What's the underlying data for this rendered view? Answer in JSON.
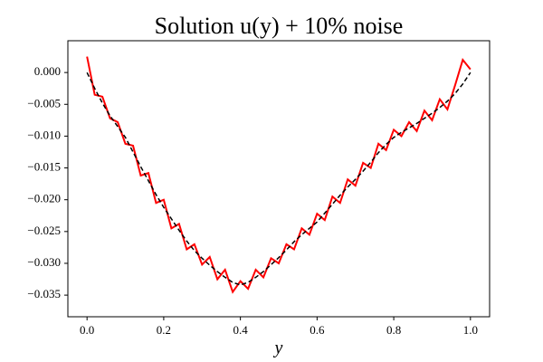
{
  "chart_data": {
    "type": "line",
    "title": "Solution u(y) + 10% noise",
    "xlabel": "y",
    "x": [
      0,
      0.02,
      0.04,
      0.06,
      0.08,
      0.1,
      0.12,
      0.14,
      0.16,
      0.18,
      0.2,
      0.22,
      0.24,
      0.26,
      0.28,
      0.3,
      0.32,
      0.34,
      0.36,
      0.38,
      0.4,
      0.42,
      0.44,
      0.46,
      0.48,
      0.5,
      0.52,
      0.54,
      0.56,
      0.58,
      0.6,
      0.62,
      0.64,
      0.66,
      0.68,
      0.7,
      0.72,
      0.74,
      0.76,
      0.78,
      0.8,
      0.82,
      0.84,
      0.86,
      0.88,
      0.9,
      0.92,
      0.94,
      0.96,
      0.98,
      1.0
    ],
    "series": [
      {
        "color": "#ff0000",
        "dashed": false,
        "values": [
          0.0025,
          -0.0035,
          -0.0038,
          -0.0072,
          -0.0078,
          -0.0112,
          -0.0115,
          -0.0162,
          -0.0158,
          -0.0205,
          -0.02,
          -0.0245,
          -0.0238,
          -0.0278,
          -0.027,
          -0.0302,
          -0.029,
          -0.0325,
          -0.031,
          -0.0345,
          -0.0328,
          -0.034,
          -0.031,
          -0.0322,
          -0.0292,
          -0.03,
          -0.027,
          -0.0278,
          -0.0245,
          -0.0255,
          -0.0222,
          -0.0232,
          -0.0195,
          -0.0205,
          -0.0168,
          -0.0178,
          -0.0142,
          -0.015,
          -0.0112,
          -0.0122,
          -0.009,
          -0.01,
          -0.0078,
          -0.0092,
          -0.006,
          -0.0075,
          -0.0042,
          -0.0058,
          -0.002,
          0.002,
          0.0005
        ]
      },
      {
        "color": "#000000",
        "dashed": true,
        "values": [
          0,
          -0.0025,
          -0.0048,
          -0.0068,
          -0.0085,
          -0.0102,
          -0.0125,
          -0.0148,
          -0.017,
          -0.0192,
          -0.0212,
          -0.023,
          -0.0248,
          -0.0265,
          -0.028,
          -0.0292,
          -0.0303,
          -0.0313,
          -0.0322,
          -0.033,
          -0.0334,
          -0.033,
          -0.0322,
          -0.0313,
          -0.0302,
          -0.0291,
          -0.0279,
          -0.0266,
          -0.0255,
          -0.0245,
          -0.0235,
          -0.0221,
          -0.0207,
          -0.0193,
          -0.018,
          -0.0168,
          -0.0155,
          -0.0141,
          -0.0126,
          -0.0113,
          -0.0102,
          -0.0094,
          -0.0087,
          -0.008,
          -0.0072,
          -0.0064,
          -0.0055,
          -0.0045,
          -0.0033,
          -0.0018,
          0
        ]
      }
    ],
    "xlim": [
      -0.05,
      1.05
    ],
    "ylim": [
      -0.0384,
      0.005
    ],
    "xticks": [
      {
        "value": 0,
        "label": "0.0"
      },
      {
        "value": 0.2,
        "label": "0.2"
      },
      {
        "value": 0.4,
        "label": "0.4"
      },
      {
        "value": 0.6,
        "label": "0.6"
      },
      {
        "value": 0.8,
        "label": "0.8"
      },
      {
        "value": 1,
        "label": "1.0"
      }
    ],
    "yticks": [
      {
        "value": 0,
        "label": "0.000"
      },
      {
        "value": -0.005,
        "label": "−0.005"
      },
      {
        "value": -0.01,
        "label": "−0.010"
      },
      {
        "value": -0.015,
        "label": "−0.015"
      },
      {
        "value": -0.02,
        "label": "−0.020"
      },
      {
        "value": -0.025,
        "label": "−0.025"
      },
      {
        "value": -0.03,
        "label": "−0.030"
      },
      {
        "value": -0.035,
        "label": "−0.035"
      }
    ],
    "grid": false
  }
}
